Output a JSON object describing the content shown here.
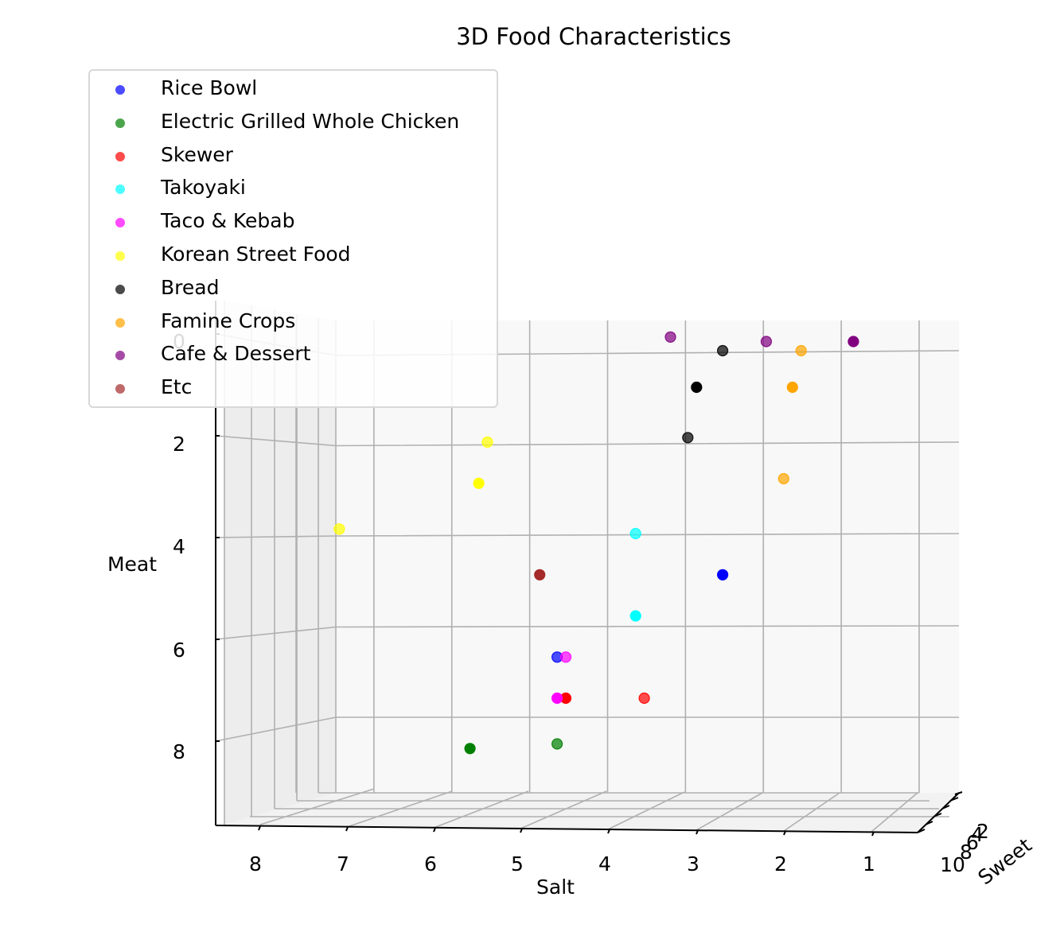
{
  "chart_data": {
    "type": "scatter3d",
    "title": "3D Food Characteristics",
    "xlabel": "Salt",
    "ylabel": "Sweet",
    "zlabel": "Meat",
    "x_ticks": [
      "8",
      "7",
      "6",
      "5",
      "4",
      "3",
      "2",
      "1"
    ],
    "y_ticks": [
      "10",
      "8",
      "6",
      "4",
      "2"
    ],
    "z_ticks": [
      "0",
      "2",
      "4",
      "6",
      "8"
    ],
    "series": [
      {
        "name": "Rice Bowl",
        "color": "#0000ff",
        "points": [
          {
            "salt": 4.2,
            "meat": 6.7
          },
          {
            "salt": 2.3,
            "meat": 4.9
          }
        ]
      },
      {
        "name": "Electric Grilled Whole Chicken",
        "color": "#008000",
        "points": [
          {
            "salt": 5.2,
            "meat": 8.7
          },
          {
            "salt": 4.2,
            "meat": 8.6
          }
        ]
      },
      {
        "name": "Skewer",
        "color": "#ff0000",
        "points": [
          {
            "salt": 4.1,
            "meat": 7.6
          },
          {
            "salt": 3.2,
            "meat": 7.6
          }
        ]
      },
      {
        "name": "Takoyaki",
        "color": "#00ffff",
        "points": [
          {
            "salt": 3.3,
            "meat": 4.0
          },
          {
            "salt": 3.3,
            "meat": 5.8
          }
        ]
      },
      {
        "name": "Taco & Kebab",
        "color": "#ff00ff",
        "points": [
          {
            "salt": 4.1,
            "meat": 6.7
          },
          {
            "salt": 4.2,
            "meat": 7.6
          }
        ]
      },
      {
        "name": "Korean Street Food",
        "color": "#ffff00",
        "points": [
          {
            "salt": 5.0,
            "meat": 2.0
          },
          {
            "salt": 5.1,
            "meat": 2.9
          },
          {
            "salt": 6.7,
            "meat": 3.9
          }
        ]
      },
      {
        "name": "Bread",
        "color": "#000000",
        "points": [
          {
            "salt": 2.3,
            "meat": 0.0
          },
          {
            "salt": 2.6,
            "meat": 0.8
          },
          {
            "salt": 2.7,
            "meat": 1.9
          }
        ]
      },
      {
        "name": "Famine Crops",
        "color": "#ffa500",
        "points": [
          {
            "salt": 1.4,
            "meat": 0.0
          },
          {
            "salt": 1.5,
            "meat": 0.8
          },
          {
            "salt": 1.6,
            "meat": 2.8
          }
        ]
      },
      {
        "name": "Cafe & Dessert",
        "color": "#800080",
        "points": [
          {
            "salt": 2.9,
            "meat": -0.3
          },
          {
            "salt": 1.8,
            "meat": -0.2
          },
          {
            "salt": 0.8,
            "meat": -0.2
          }
        ]
      },
      {
        "name": "Etc",
        "color": "#a52a2a",
        "points": [
          {
            "salt": 4.4,
            "meat": 4.9
          }
        ]
      }
    ]
  }
}
